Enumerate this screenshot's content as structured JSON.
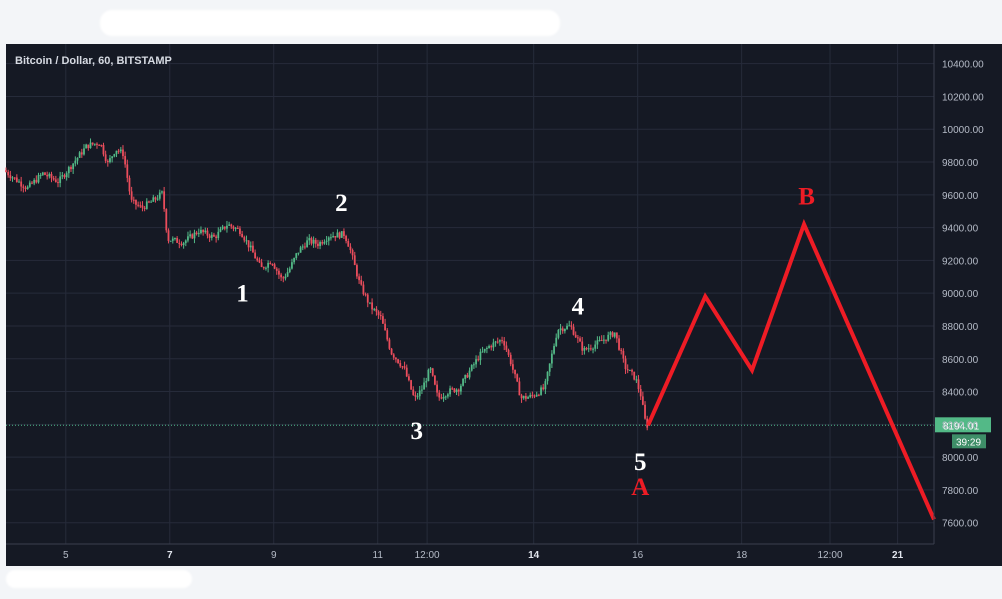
{
  "chart_data": {
    "type": "candlestick",
    "title": "Bitcoin / Dollar, 60, BITSTAMP",
    "y_ticks": [
      10400,
      10200,
      10000,
      9800,
      9600,
      9400,
      9200,
      9000,
      8800,
      8600,
      8400,
      8200,
      8000,
      7800,
      7600
    ],
    "y_tick_labels": [
      "10400.00",
      "10200.00",
      "10000.00",
      "9800.00",
      "9600.00",
      "9400.00",
      "9200.00",
      "9000.00",
      "8800.00",
      "8600.00",
      "8400.00",
      "8200.00",
      "8000.00",
      "7800.00",
      "7600.00"
    ],
    "ylim": [
      7470,
      10520
    ],
    "x_ticks": [
      {
        "label": "5",
        "day": 5,
        "bold": false
      },
      {
        "label": "7",
        "day": 7,
        "bold": true
      },
      {
        "label": "9",
        "day": 9,
        "bold": false
      },
      {
        "label": "11",
        "day": 11,
        "bold": false
      },
      {
        "label": "12:00",
        "day": 11.95,
        "bold": false
      },
      {
        "label": "14",
        "day": 14,
        "bold": true
      },
      {
        "label": "16",
        "day": 16,
        "bold": false
      },
      {
        "label": "18",
        "day": 18,
        "bold": false
      },
      {
        "label": "12:00",
        "day": 19.7,
        "bold": false
      },
      {
        "label": "21",
        "day": 21,
        "bold": true
      }
    ],
    "xlim": [
      3.85,
      21.7
    ],
    "price_path": [
      [
        3.85,
        9750
      ],
      [
        4.3,
        9640
      ],
      [
        4.6,
        9730
      ],
      [
        4.9,
        9680
      ],
      [
        5.2,
        9800
      ],
      [
        5.45,
        9900
      ],
      [
        5.7,
        9920
      ],
      [
        5.85,
        9790
      ],
      [
        6.0,
        9880
      ],
      [
        6.15,
        9850
      ],
      [
        6.3,
        9560
      ],
      [
        6.5,
        9520
      ],
      [
        6.7,
        9560
      ],
      [
        6.9,
        9610
      ],
      [
        7.0,
        9330
      ],
      [
        7.3,
        9310
      ],
      [
        7.6,
        9380
      ],
      [
        7.9,
        9340
      ],
      [
        8.15,
        9420
      ],
      [
        8.4,
        9380
      ],
      [
        8.6,
        9270
      ],
      [
        8.8,
        9150
      ],
      [
        9.0,
        9200
      ],
      [
        9.2,
        9080
      ],
      [
        9.35,
        9150
      ],
      [
        9.5,
        9250
      ],
      [
        9.7,
        9320
      ],
      [
        9.9,
        9300
      ],
      [
        10.1,
        9350
      ],
      [
        10.4,
        9360
      ],
      [
        10.5,
        9280
      ],
      [
        10.7,
        9050
      ],
      [
        10.9,
        8920
      ],
      [
        11.1,
        8850
      ],
      [
        11.3,
        8640
      ],
      [
        11.55,
        8540
      ],
      [
        11.75,
        8350
      ],
      [
        11.9,
        8420
      ],
      [
        12.05,
        8540
      ],
      [
        12.2,
        8360
      ],
      [
        12.4,
        8400
      ],
      [
        12.6,
        8420
      ],
      [
        12.8,
        8520
      ],
      [
        13.0,
        8620
      ],
      [
        13.2,
        8680
      ],
      [
        13.45,
        8720
      ],
      [
        13.6,
        8580
      ],
      [
        13.8,
        8360
      ],
      [
        14.0,
        8370
      ],
      [
        14.25,
        8420
      ],
      [
        14.5,
        8780
      ],
      [
        14.75,
        8800
      ],
      [
        15.0,
        8650
      ],
      [
        15.3,
        8700
      ],
      [
        15.6,
        8760
      ],
      [
        15.8,
        8550
      ],
      [
        16.0,
        8480
      ],
      [
        16.1,
        8380
      ],
      [
        16.2,
        8194
      ]
    ],
    "current_price": 8194.01,
    "current_price_label": "8194.01",
    "countdown_label": "39:29",
    "projection_path": [
      [
        16.2,
        8194
      ],
      [
        17.3,
        8980
      ],
      [
        18.2,
        8530
      ],
      [
        19.2,
        9420
      ],
      [
        21.7,
        7620
      ]
    ],
    "wave_labels": [
      {
        "text": "1",
        "day": 8.4,
        "price": 8950,
        "color": "white"
      },
      {
        "text": "2",
        "day": 10.3,
        "price": 9500,
        "color": "white"
      },
      {
        "text": "3",
        "day": 11.75,
        "price": 8110,
        "color": "white"
      },
      {
        "text": "4",
        "day": 14.85,
        "price": 8870,
        "color": "white"
      },
      {
        "text": "5",
        "day": 16.05,
        "price": 7920,
        "color": "white"
      },
      {
        "text": "A",
        "day": 16.05,
        "price": 7770,
        "color": "red"
      },
      {
        "text": "B",
        "day": 19.25,
        "price": 9540,
        "color": "red"
      }
    ],
    "colors": {
      "background": "#151924",
      "grid": "#262b3a",
      "up": "#53b987",
      "down": "#eb4d5c",
      "projection": "#ee1c25",
      "price_line": "#4fb88a"
    }
  }
}
